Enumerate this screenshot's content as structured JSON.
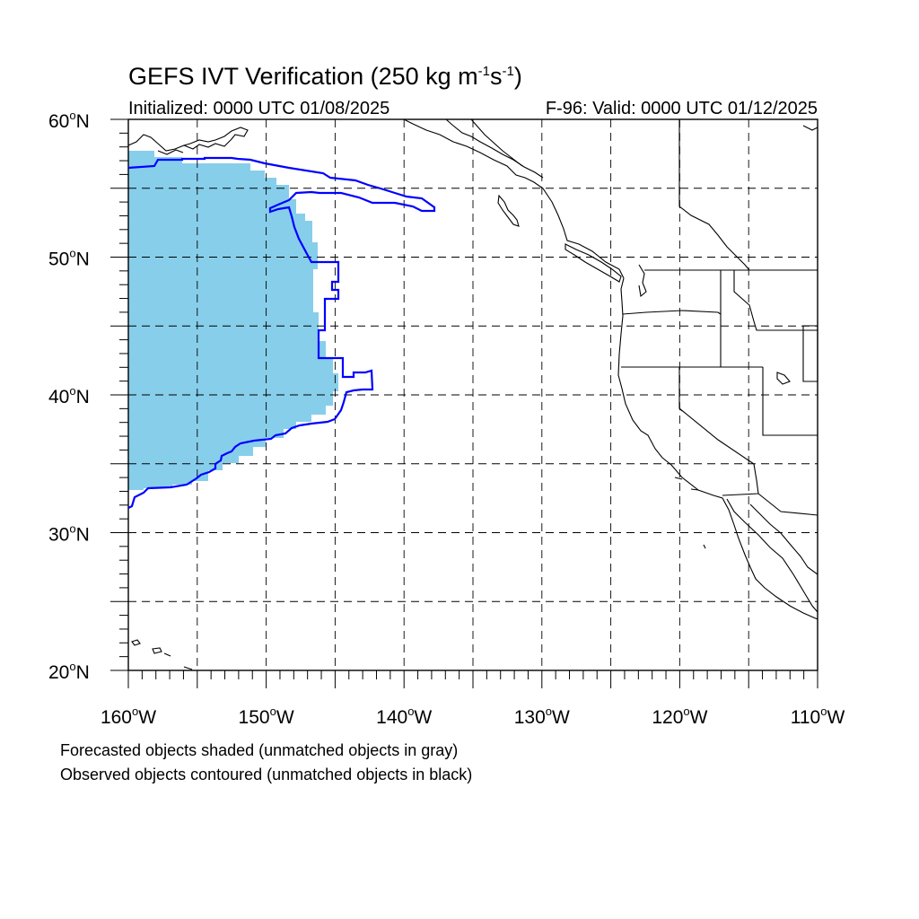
{
  "header": {
    "title_prefix": "GEFS IVT Verification (250 kg m",
    "title_exp1": "-1",
    "title_mid": "s",
    "title_exp2": "-1",
    "title_suffix": ")",
    "initialized": "Initialized: 0000 UTC 01/08/2025",
    "valid": "F-96: Valid: 0000 UTC 01/12/2025"
  },
  "map": {
    "lon_range": [
      -160,
      -110
    ],
    "lat_range": [
      20,
      60
    ],
    "lat_labels": [
      "20",
      "30",
      "40",
      "50",
      "60"
    ],
    "lon_labels": [
      "160",
      "150",
      "140",
      "130",
      "120",
      "110"
    ],
    "lat_suffix": "N",
    "lon_suffix": "W",
    "degree": "o",
    "forecast_color": "#87ceeb",
    "observed_color": "#0000ff"
  },
  "legend": {
    "forecast_note": "Forecasted objects shaded (unmatched objects in gray)",
    "observed_note": "Observed objects contoured (unmatched objects in black)"
  }
}
